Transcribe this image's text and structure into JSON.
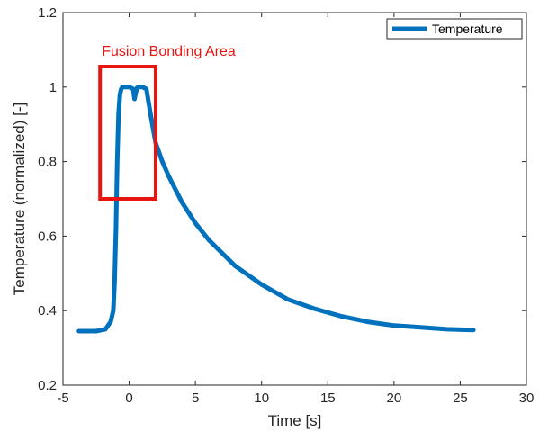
{
  "chart_data": {
    "type": "line",
    "title": "",
    "xlabel": "Time [s]",
    "ylabel": "Temperature (normalized) [-]",
    "xlim": [
      -5,
      30
    ],
    "ylim": [
      0.2,
      1.2
    ],
    "xticks": [
      -5,
      0,
      5,
      10,
      15,
      20,
      25,
      30
    ],
    "yticks": [
      0.2,
      0.4,
      0.6,
      0.8,
      1,
      1.2
    ],
    "xtick_labels": [
      "-5",
      "0",
      "5",
      "10",
      "15",
      "20",
      "25",
      "30"
    ],
    "ytick_labels": [
      "0.2",
      "0.4",
      "0.6",
      "0.8",
      "1",
      "1.2"
    ],
    "grid": false,
    "legend_position": "top-right",
    "series": [
      {
        "name": "Temperature",
        "color": "#0072bd",
        "x": [
          -3.8,
          -2.5,
          -1.8,
          -1.4,
          -1.2,
          -1.1,
          -1.0,
          -0.9,
          -0.8,
          -0.7,
          -0.6,
          -0.5,
          -0.3,
          0.0,
          0.3,
          0.4,
          0.5,
          0.6,
          0.7,
          1.0,
          1.3,
          1.6,
          2.0,
          2.5,
          3.0,
          4.0,
          5.0,
          6.0,
          7.0,
          8.0,
          10.0,
          12.0,
          14.0,
          16.0,
          18.0,
          20.0,
          22.0,
          24.0,
          26.0
        ],
        "values": [
          0.345,
          0.345,
          0.35,
          0.37,
          0.4,
          0.48,
          0.62,
          0.8,
          0.93,
          0.98,
          0.995,
          1.0,
          1.0,
          1.0,
          0.995,
          0.968,
          0.985,
          0.998,
          1.0,
          1.0,
          0.995,
          0.93,
          0.85,
          0.8,
          0.76,
          0.69,
          0.635,
          0.59,
          0.555,
          0.52,
          0.47,
          0.43,
          0.405,
          0.385,
          0.37,
          0.36,
          0.355,
          0.35,
          0.348
        ]
      }
    ],
    "annotations": [
      {
        "text": "Fusion Bonding Area",
        "color": "#e8140f",
        "box_x": [
          -2.2,
          2.0
        ],
        "box_y": [
          0.7,
          1.055
        ]
      }
    ]
  }
}
